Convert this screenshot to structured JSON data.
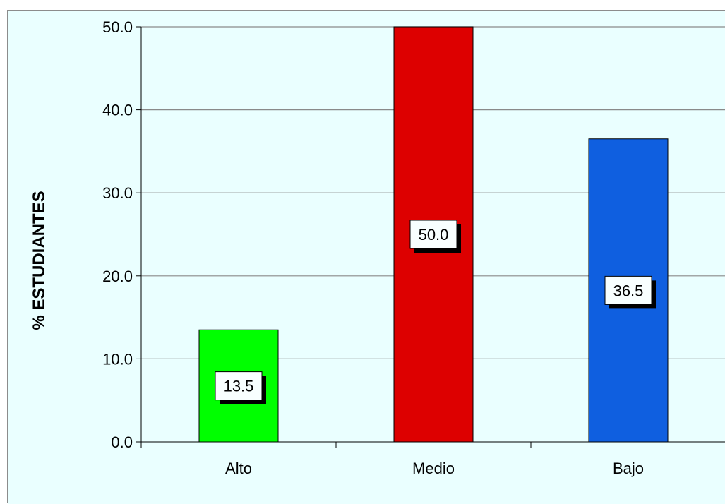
{
  "chart_data": {
    "type": "bar",
    "title": "",
    "xlabel": "",
    "ylabel": "% ESTUDIANTES",
    "categories": [
      "Alto",
      "Medio",
      "Bajo"
    ],
    "values": [
      13.5,
      50.0,
      36.5
    ],
    "data_labels": [
      "13.5",
      "50.0",
      "36.5"
    ],
    "bar_colors": [
      "#00ff00",
      "#dd0000",
      "#0f5fe0"
    ],
    "ylim": [
      0,
      50
    ],
    "yticks": [
      0,
      10,
      20,
      30,
      40,
      50
    ],
    "ytick_labels": [
      "0.0",
      "10.0",
      "20.0",
      "30.0",
      "40.0",
      "50.0"
    ],
    "grid": true,
    "plot_background": "#eaffff",
    "legend": "none"
  }
}
